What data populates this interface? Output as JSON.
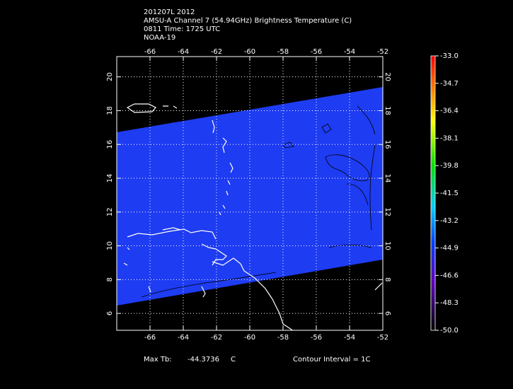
{
  "header": {
    "lines": [
      "201207L 2012",
      "AMSU-A Channel 7 (54.94GHz) Brightness Temperature (C)",
      "0811 Time: 1725 UTC",
      "NOAA-19"
    ]
  },
  "map": {
    "xlim": [
      -68,
      -52
    ],
    "ylim": [
      5,
      21.2
    ],
    "xticks": [
      -66,
      -64,
      -62,
      -60,
      -58,
      -56,
      -54,
      -52
    ],
    "yticks": [
      6,
      8,
      10,
      12,
      14,
      16,
      18,
      20
    ]
  },
  "colorbar": {
    "lim": [
      -50,
      -33
    ],
    "ticks": [
      {
        "value": -33,
        "label": "-33.0"
      },
      {
        "value": -34.7,
        "label": "-34.7"
      },
      {
        "value": -36.4,
        "label": "-36.4"
      },
      {
        "value": -38.1,
        "label": "-38.1"
      },
      {
        "value": -39.8,
        "label": "-39.8"
      },
      {
        "value": -41.5,
        "label": "-41.5"
      },
      {
        "value": -43.2,
        "label": "-43.2"
      },
      {
        "value": -44.9,
        "label": "-44.9"
      },
      {
        "value": -46.6,
        "label": "-46.6"
      },
      {
        "value": -48.3,
        "label": "-48.3"
      },
      {
        "value": -50,
        "label": "-50.0"
      }
    ]
  },
  "footer": {
    "max_label": "Max Tb:",
    "max_value": "-44.3736",
    "unit": "C",
    "contour": "Contour Interval = 1C"
  }
}
